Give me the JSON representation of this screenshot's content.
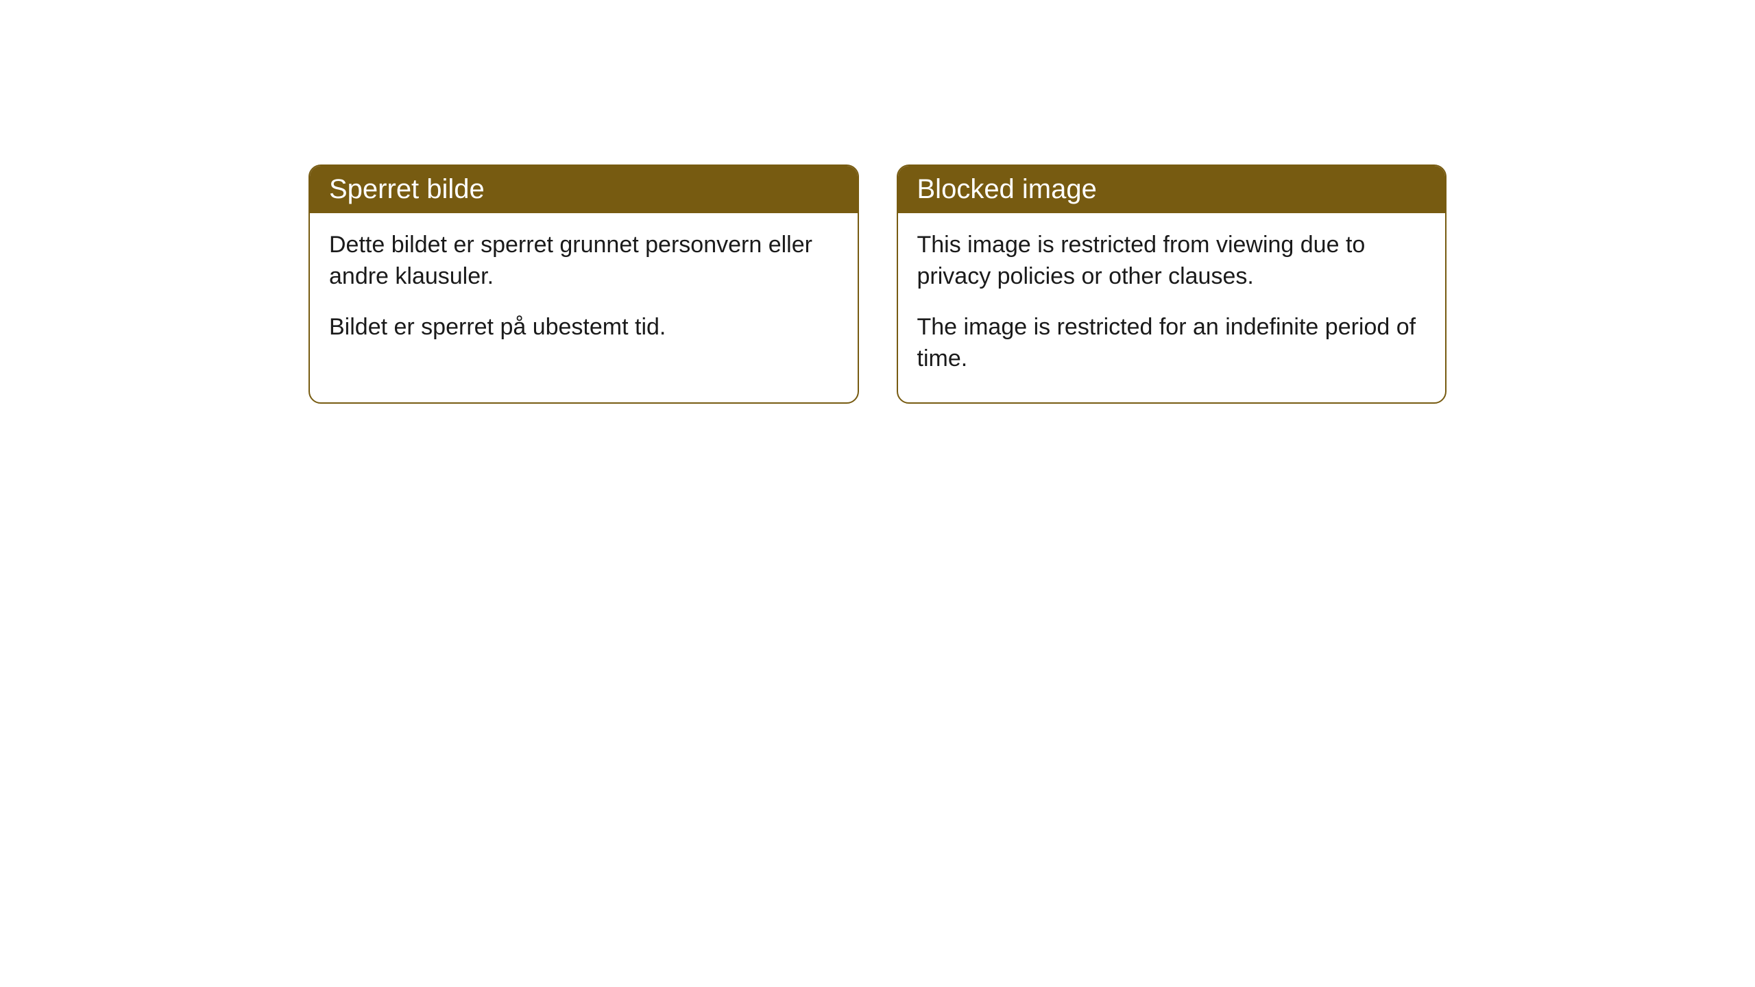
{
  "cards": [
    {
      "title": "Sperret bilde",
      "paragraph1": "Dette bildet er sperret grunnet personvern eller andre klausuler.",
      "paragraph2": "Bildet er sperret på ubestemt tid."
    },
    {
      "title": "Blocked image",
      "paragraph1": "This image is restricted from viewing due to privacy policies or other clauses.",
      "paragraph2": "The image is restricted for an indefinite period of time."
    }
  ],
  "styling": {
    "header_background_color": "#775b11",
    "header_text_color": "#ffffff",
    "card_border_color": "#775b11",
    "card_background_color": "#ffffff",
    "body_text_color": "#1a1a1a",
    "card_border_radius": 18,
    "header_fontsize": 40,
    "body_fontsize": 34
  }
}
